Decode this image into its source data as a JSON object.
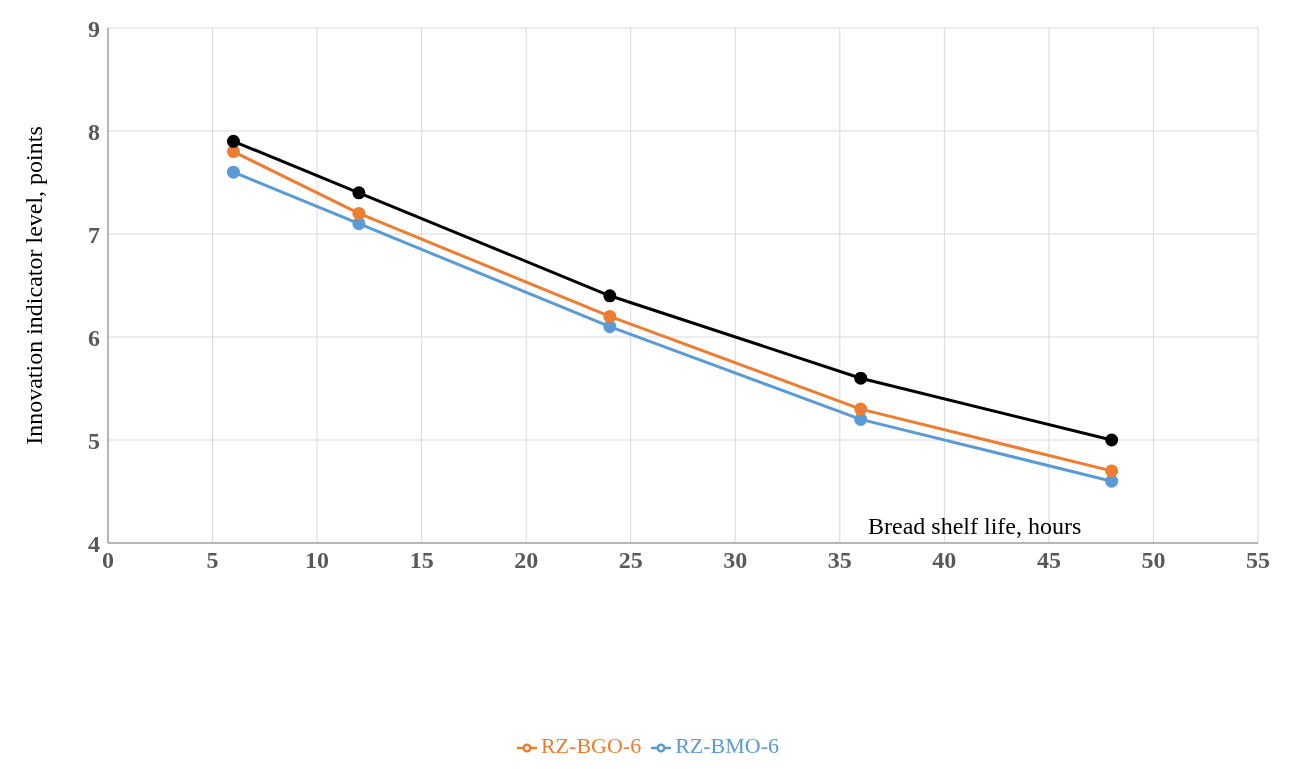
{
  "chart_data": {
    "type": "line",
    "xlabel": "Bread shelf life, hours",
    "ylabel": "Innovation indicator level, points",
    "x": [
      6,
      12,
      24,
      36,
      48
    ],
    "series": [
      {
        "name": "RZ-BMO-6",
        "color": "#5b9bd5",
        "values": [
          7.6,
          7.1,
          6.1,
          5.2,
          4.6
        ]
      },
      {
        "name": "RZ-BGO-6",
        "color": "#ed7d31",
        "values": [
          7.8,
          7.2,
          6.2,
          5.3,
          4.7
        ]
      },
      {
        "color": "#000000",
        "values": [
          7.9,
          7.4,
          6.4,
          5.6,
          5.0
        ]
      }
    ],
    "xlim": [
      0,
      55
    ],
    "xticks": [
      0,
      5,
      10,
      15,
      20,
      25,
      30,
      35,
      40,
      45,
      50,
      55
    ],
    "ylim": [
      4,
      9
    ],
    "yticks": [
      4,
      5,
      6,
      7,
      8,
      9
    ],
    "grid": true,
    "legend": "bottom",
    "marker": "circle",
    "line_style": "solid"
  }
}
